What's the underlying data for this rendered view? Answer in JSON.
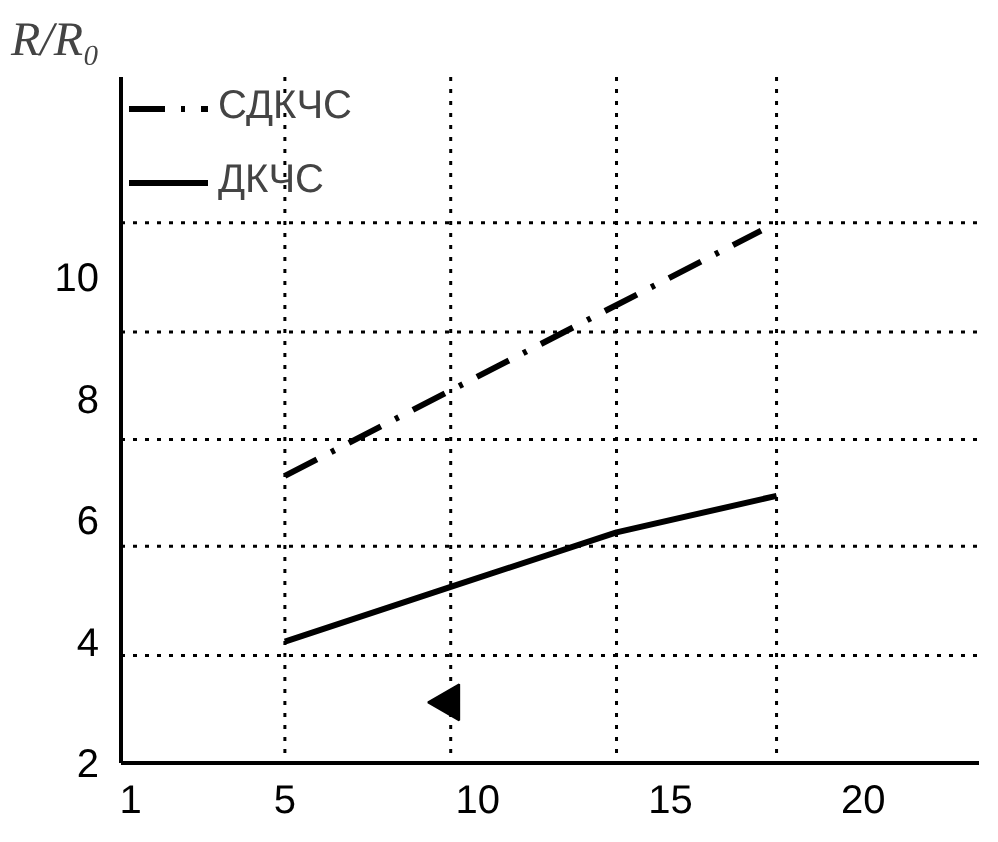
{
  "chart_data": {
    "type": "line",
    "ylabel": "R/R₀",
    "xlim": [
      0.75,
      23
    ],
    "ylim": [
      2,
      13.3
    ],
    "xticks": [
      1,
      5,
      10,
      15,
      20
    ],
    "yticks": [
      2,
      4,
      6,
      8,
      10
    ],
    "legend": "top left",
    "grid": false,
    "series": [
      {
        "name": "СДКЧС",
        "color": "#000000",
        "line_style": "dashdot",
        "x": [
          5,
          17.35
        ],
        "values": [
          6.73,
          10.77
        ]
      },
      {
        "name": "ДКЧС",
        "color": "#000000",
        "line_style": "solid",
        "x": [
          5,
          9.3,
          13.6,
          17.75
        ],
        "values": [
          4.0,
          4.9,
          5.8,
          6.4
        ]
      },
      {
        "type": "scatter",
        "marker": "triangle",
        "color": "#000000",
        "x": [
          9.25
        ],
        "values": [
          3.0
        ]
      }
    ],
    "ref_lines": [
      {
        "axis": "x",
        "value": 5,
        "color": "#000000",
        "line_style": "dotted"
      },
      {
        "axis": "x",
        "value": 9.3,
        "color": "#000000",
        "line_style": "dotted"
      },
      {
        "axis": "x",
        "value": 13.6,
        "color": "#000000",
        "line_style": "dotted"
      },
      {
        "axis": "x",
        "value": 17.75,
        "color": "#000000",
        "line_style": "dotted"
      },
      {
        "axis": "y",
        "value": 3.77,
        "color": "#000000",
        "line_style": "dotted"
      },
      {
        "axis": "y",
        "value": 5.57,
        "color": "#000000",
        "line_style": "dotted"
      },
      {
        "axis": "y",
        "value": 7.33,
        "color": "#000000",
        "line_style": "dotted"
      },
      {
        "axis": "y",
        "value": 9.1,
        "color": "#000000",
        "line_style": "dotted"
      },
      {
        "axis": "y",
        "value": 10.9,
        "color": "#000000",
        "line_style": "dotted"
      }
    ]
  }
}
